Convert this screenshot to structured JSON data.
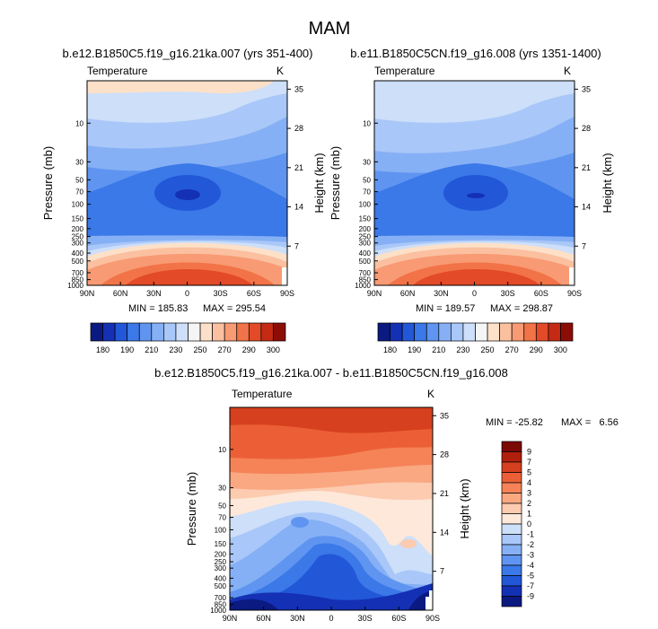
{
  "figure_title": "MAM",
  "chart_data": [
    {
      "type": "heatmap",
      "title": "b.e12.B1850C5.f19_g16.21ka.007 (yrs 351-400)",
      "variable": "Temperature",
      "units": "K",
      "xlabel": "",
      "ylabel": "Pressure (mb)",
      "ylabel_right": "Height (km)",
      "x_ticks": [
        "90N",
        "60N",
        "30N",
        "0",
        "30S",
        "60S",
        "90S"
      ],
      "y_ticks_pressure": [
        10,
        30,
        50,
        70,
        100,
        150,
        200,
        250,
        300,
        400,
        500,
        700,
        850,
        1000
      ],
      "y_ticks_height": [
        35,
        28,
        21,
        14,
        7
      ],
      "stats": {
        "min_label": "MIN = 185.83",
        "max_label": "MAX = 295.54",
        "min": 185.83,
        "max": 295.54
      },
      "colorbar": {
        "orientation": "horizontal",
        "tick_labels": [
          "180",
          "190",
          "210",
          "230",
          "250",
          "270",
          "290",
          "300"
        ]
      }
    },
    {
      "type": "heatmap",
      "title": "b.e11.B1850C5CN.f19_g16.008 (yrs 1351-1400)",
      "variable": "Temperature",
      "units": "K",
      "xlabel": "",
      "ylabel": "Pressure (mb)",
      "ylabel_right": "Height (km)",
      "x_ticks": [
        "90N",
        "60N",
        "30N",
        "0",
        "30S",
        "60S",
        "90S"
      ],
      "y_ticks_pressure": [
        10,
        30,
        50,
        70,
        100,
        150,
        200,
        250,
        300,
        400,
        500,
        700,
        850,
        1000
      ],
      "y_ticks_height": [
        35,
        28,
        21,
        14,
        7
      ],
      "stats": {
        "min_label": "MIN = 189.57",
        "max_label": "MAX = 298.87",
        "min": 189.57,
        "max": 298.87
      },
      "colorbar": {
        "orientation": "horizontal",
        "tick_labels": [
          "180",
          "190",
          "210",
          "230",
          "250",
          "270",
          "290",
          "300"
        ]
      }
    },
    {
      "type": "heatmap",
      "title": "b.e12.B1850C5.f19_g16.21ka.007 - b.e11.B1850C5CN.f19_g16.008",
      "variable": "Temperature",
      "units": "K",
      "xlabel": "",
      "ylabel": "Pressure (mb)",
      "ylabel_right": "Height (km)",
      "x_ticks": [
        "90N",
        "60N",
        "30N",
        "0",
        "30S",
        "60S",
        "90S"
      ],
      "y_ticks_pressure": [
        10,
        30,
        50,
        70,
        100,
        150,
        200,
        250,
        300,
        400,
        500,
        700,
        850,
        1000
      ],
      "y_ticks_height": [
        35,
        28,
        21,
        14,
        7
      ],
      "stats": {
        "min_label": "MIN = -25.82",
        "max_label": "MAX =   6.56",
        "min": -25.82,
        "max": 6.56
      },
      "colorbar": {
        "orientation": "vertical",
        "tick_labels": [
          "9",
          "7",
          "5",
          "4",
          "3",
          "2",
          "1",
          "0",
          "-1",
          "-2",
          "-3",
          "-4",
          "-5",
          "-7",
          "-9"
        ]
      }
    }
  ],
  "palettes": {
    "absolute": [
      "#0b1a80",
      "#1430b4",
      "#2257d8",
      "#3b78e8",
      "#5f95f0",
      "#86b0f5",
      "#a9c7f8",
      "#cddff9",
      "#f5f5f5",
      "#fde0c8",
      "#fbc0a0",
      "#f89a74",
      "#f27348",
      "#e24a28",
      "#c42a14",
      "#8b0d06"
    ],
    "difference": [
      "#0b1a80",
      "#1430b4",
      "#2257d8",
      "#3b78e8",
      "#5f95f0",
      "#86b0f5",
      "#a9c7f8",
      "#cddff9",
      "#fde8da",
      "#fccbb0",
      "#f9a882",
      "#f58357",
      "#ec5f36",
      "#d6401e",
      "#b0200c",
      "#7a0a04"
    ]
  }
}
